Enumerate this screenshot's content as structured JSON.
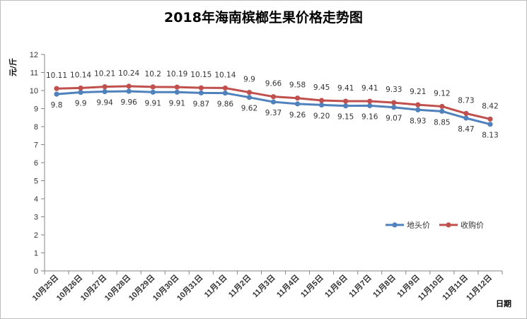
{
  "chart_data": {
    "type": "line",
    "title": "2018年海南槟榔生果价格走势图",
    "xlabel": "日期",
    "ylabel": "元/斤",
    "ylim": [
      0,
      12
    ],
    "yticks": [
      0,
      1,
      2,
      3,
      4,
      5,
      6,
      7,
      8,
      9,
      10,
      11,
      12
    ],
    "grid": false,
    "legend_position": "right",
    "categories": [
      "10月25日",
      "10月26日",
      "10月27日",
      "10月28日",
      "10月29日",
      "10月30日",
      "10月31日",
      "11月1日",
      "11月2日",
      "11月3日",
      "11月4日",
      "11月5日",
      "11月6日",
      "11月7日",
      "11月8日",
      "11月9日",
      "11月10日",
      "11月11日",
      "11月12日"
    ],
    "series": [
      {
        "name": "地头价",
        "color": "#4f81bd",
        "values": [
          9.8,
          9.9,
          9.94,
          9.96,
          9.91,
          9.91,
          9.87,
          9.86,
          9.62,
          9.37,
          9.26,
          9.2,
          9.15,
          9.16,
          9.07,
          8.93,
          8.85,
          8.47,
          8.13
        ],
        "labels": [
          "9.8",
          "9.9",
          "9.94",
          "9.96",
          "9.91",
          "9.91",
          "9.87",
          "9.86",
          "9.62",
          "9.37",
          "9.26",
          "9.20",
          "9.15",
          "9.16",
          "9.07",
          "8.93",
          "8.85",
          "8.47",
          "8.13"
        ]
      },
      {
        "name": "收购价",
        "color": "#c0504d",
        "values": [
          10.11,
          10.14,
          10.21,
          10.24,
          10.2,
          10.19,
          10.15,
          10.14,
          9.9,
          9.66,
          9.58,
          9.45,
          9.41,
          9.41,
          9.33,
          9.21,
          9.12,
          8.73,
          8.42
        ],
        "labels": [
          "10.11",
          "10.14",
          "10.21",
          "10.24",
          "10.2",
          "10.19",
          "10.15",
          "10.14",
          "9.9",
          "9.66",
          "9.58",
          "9.45",
          "9.41",
          "9.41",
          "9.33",
          "9.21",
          "9.12",
          "8.73",
          "8.42"
        ]
      }
    ]
  }
}
